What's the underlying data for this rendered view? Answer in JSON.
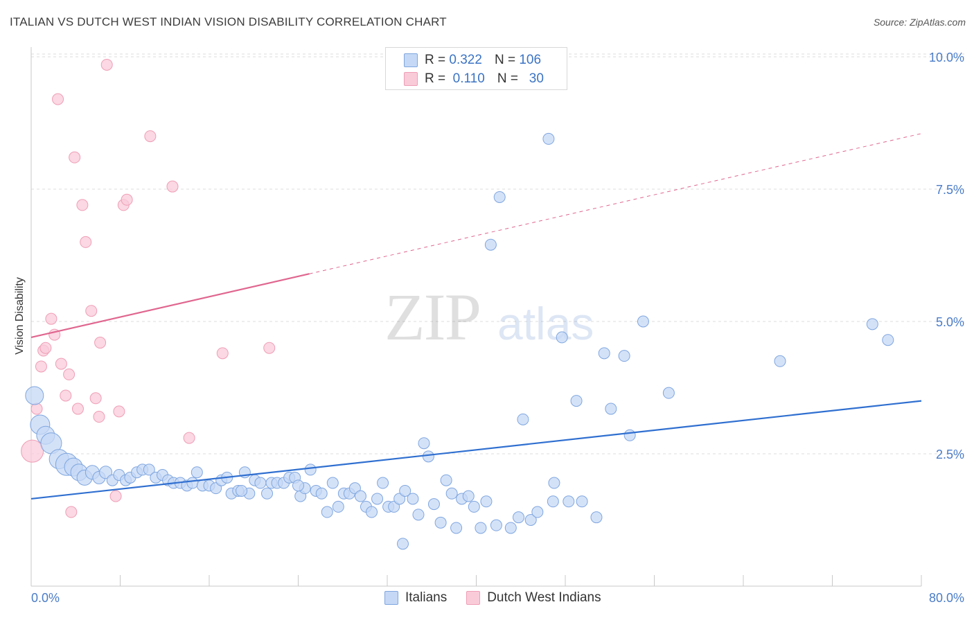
{
  "header": {
    "title": "ITALIAN VS DUTCH WEST INDIAN VISION DISABILITY CORRELATION CHART",
    "source": "Source: ZipAtlas.com"
  },
  "watermark": {
    "zip": "ZIP",
    "atlas": "atlas"
  },
  "legend": {
    "italians": {
      "r_label": "R =",
      "r_value": "0.322",
      "n_label": "N =",
      "n_value": "106"
    },
    "dutch": {
      "r_label": "R =",
      "r_value": "0.110",
      "n_label": "N =",
      "n_value": "30"
    }
  },
  "bottom_legend": {
    "italians": "Italians",
    "dutch": "Dutch West Indians"
  },
  "colors": {
    "italians_fill": "#c5d8f5",
    "italians_stroke": "#7fa6df",
    "italians_line": "#2f6fd0",
    "dutch_fill": "#f9cbd9",
    "dutch_stroke": "#ef9db6",
    "dutch_line": "#e0668f",
    "tick_text": "#4a7cc7",
    "grid": "#dddddd"
  },
  "chart_data": {
    "type": "scatter",
    "title": "ITALIAN VS DUTCH WEST INDIAN VISION DISABILITY CORRELATION CHART",
    "xlabel": "",
    "ylabel": "Vision Disability",
    "xlim": [
      0,
      80
    ],
    "ylim": [
      0,
      10.5
    ],
    "x_tick_labels": [
      "0.0%",
      "80.0%"
    ],
    "y_ticks": [
      2.5,
      5.0,
      7.5,
      10.0
    ],
    "y_tick_labels": [
      "2.5%",
      "5.0%",
      "7.5%",
      "10.0%"
    ],
    "grid": "horizontal dashed",
    "legend_position": "top-center",
    "series": [
      {
        "name": "Italians",
        "r": 0.322,
        "n": 106,
        "trend": {
          "x": [
            0,
            80
          ],
          "y": [
            1.65,
            3.5
          ]
        },
        "points": [
          [
            0.3,
            3.6,
            13
          ],
          [
            0.8,
            3.05,
            14
          ],
          [
            1.3,
            2.85,
            13
          ],
          [
            1.8,
            2.7,
            15
          ],
          [
            2.5,
            2.4,
            14
          ],
          [
            3.2,
            2.3,
            16
          ],
          [
            3.8,
            2.25,
            13
          ],
          [
            4.3,
            2.15,
            12
          ],
          [
            4.8,
            2.05,
            11
          ],
          [
            5.5,
            2.15,
            10
          ],
          [
            6.1,
            2.05,
            9
          ],
          [
            6.7,
            2.15,
            9
          ],
          [
            7.3,
            2.0,
            8
          ],
          [
            7.9,
            2.1,
            8
          ],
          [
            8.5,
            2.0,
            8
          ],
          [
            8.9,
            2.05,
            8
          ],
          [
            9.5,
            2.15,
            8
          ],
          [
            10.0,
            2.2,
            8
          ],
          [
            10.6,
            2.2,
            8
          ],
          [
            11.2,
            2.05,
            8
          ],
          [
            11.8,
            2.1,
            8
          ],
          [
            12.3,
            2.0,
            8
          ],
          [
            12.8,
            1.95,
            8
          ],
          [
            13.4,
            1.95,
            8
          ],
          [
            14.0,
            1.9,
            8
          ],
          [
            14.5,
            1.95,
            8
          ],
          [
            14.9,
            2.15,
            8
          ],
          [
            15.4,
            1.9,
            8
          ],
          [
            16.0,
            1.9,
            8
          ],
          [
            16.6,
            1.85,
            8
          ],
          [
            17.1,
            2.0,
            8
          ],
          [
            17.6,
            2.05,
            8
          ],
          [
            18.0,
            1.75,
            8
          ],
          [
            18.6,
            1.8,
            8
          ],
          [
            19.2,
            2.15,
            8
          ],
          [
            19.6,
            1.75,
            8
          ],
          [
            20.1,
            2.0,
            8
          ],
          [
            20.6,
            1.95,
            8
          ],
          [
            21.2,
            1.75,
            8
          ],
          [
            21.6,
            1.95,
            8
          ],
          [
            22.1,
            1.95,
            8
          ],
          [
            22.7,
            1.95,
            8
          ],
          [
            23.2,
            2.05,
            8
          ],
          [
            23.7,
            2.05,
            8
          ],
          [
            24.2,
            1.7,
            8
          ],
          [
            24.6,
            1.85,
            8
          ],
          [
            25.1,
            2.2,
            8
          ],
          [
            25.6,
            1.8,
            8
          ],
          [
            26.1,
            1.75,
            8
          ],
          [
            26.6,
            1.4,
            8
          ],
          [
            27.1,
            1.95,
            8
          ],
          [
            27.6,
            1.5,
            8
          ],
          [
            28.1,
            1.75,
            8
          ],
          [
            28.6,
            1.75,
            8
          ],
          [
            29.1,
            1.85,
            8
          ],
          [
            29.6,
            1.7,
            8
          ],
          [
            30.1,
            1.5,
            8
          ],
          [
            30.6,
            1.4,
            8
          ],
          [
            31.1,
            1.65,
            8
          ],
          [
            31.6,
            1.95,
            8
          ],
          [
            32.1,
            1.5,
            8
          ],
          [
            32.6,
            1.5,
            8
          ],
          [
            33.1,
            1.65,
            8
          ],
          [
            33.6,
            1.8,
            8
          ],
          [
            33.4,
            0.8,
            8
          ],
          [
            34.3,
            1.65,
            8
          ],
          [
            34.8,
            1.35,
            8
          ],
          [
            35.3,
            2.7,
            8
          ],
          [
            35.7,
            2.45,
            8
          ],
          [
            36.2,
            1.55,
            8
          ],
          [
            36.8,
            1.2,
            8
          ],
          [
            37.3,
            2.0,
            8
          ],
          [
            37.8,
            1.75,
            8
          ],
          [
            38.2,
            1.1,
            8
          ],
          [
            38.7,
            1.65,
            8
          ],
          [
            39.3,
            1.7,
            8
          ],
          [
            39.8,
            1.5,
            8
          ],
          [
            40.4,
            1.1,
            8
          ],
          [
            40.9,
            1.6,
            8
          ],
          [
            41.3,
            6.45,
            8
          ],
          [
            41.8,
            1.15,
            8
          ],
          [
            42.1,
            7.35,
            8
          ],
          [
            43.1,
            1.1,
            8
          ],
          [
            43.8,
            1.3,
            8
          ],
          [
            44.2,
            3.15,
            8
          ],
          [
            44.9,
            1.25,
            8
          ],
          [
            45.5,
            1.4,
            8
          ],
          [
            46.5,
            8.45,
            8
          ],
          [
            46.9,
            1.6,
            8
          ],
          [
            47.0,
            1.95,
            8
          ],
          [
            47.7,
            4.7,
            8
          ],
          [
            48.3,
            1.6,
            8
          ],
          [
            49.5,
            1.6,
            8
          ],
          [
            49.0,
            3.5,
            8
          ],
          [
            50.8,
            1.3,
            8
          ],
          [
            52.1,
            3.35,
            8
          ],
          [
            53.3,
            4.35,
            8
          ],
          [
            53.8,
            2.85,
            8
          ],
          [
            55.0,
            5.0,
            8
          ],
          [
            57.3,
            3.65,
            8
          ],
          [
            67.3,
            4.25,
            8
          ],
          [
            75.6,
            4.95,
            8
          ],
          [
            77.0,
            4.65,
            8
          ],
          [
            51.5,
            4.4,
            8
          ],
          [
            24.0,
            1.9,
            8
          ],
          [
            18.9,
            1.8,
            8
          ]
        ]
      },
      {
        "name": "Dutch West Indians",
        "r": 0.11,
        "n": 30,
        "trend": {
          "x": [
            0,
            25
          ],
          "y": [
            4.7,
            5.9
          ]
        },
        "trend_dashed": {
          "x": [
            25,
            80
          ],
          "y": [
            5.9,
            8.55
          ]
        },
        "points": [
          [
            0.1,
            2.55,
            16
          ],
          [
            0.5,
            3.35,
            8
          ],
          [
            0.9,
            4.15,
            8
          ],
          [
            1.1,
            4.45,
            8
          ],
          [
            1.3,
            4.5,
            8
          ],
          [
            1.8,
            5.05,
            8
          ],
          [
            2.1,
            4.75,
            8
          ],
          [
            2.4,
            9.2,
            8
          ],
          [
            2.7,
            4.2,
            8
          ],
          [
            3.1,
            3.6,
            8
          ],
          [
            3.4,
            4.0,
            8
          ],
          [
            3.6,
            1.4,
            8
          ],
          [
            3.9,
            8.1,
            8
          ],
          [
            4.2,
            3.35,
            8
          ],
          [
            4.6,
            7.2,
            8
          ],
          [
            4.9,
            6.5,
            8
          ],
          [
            5.4,
            5.2,
            8
          ],
          [
            5.8,
            3.55,
            8
          ],
          [
            6.1,
            3.2,
            8
          ],
          [
            6.2,
            4.6,
            8
          ],
          [
            6.8,
            9.85,
            8
          ],
          [
            7.6,
            1.7,
            8
          ],
          [
            7.9,
            3.3,
            8
          ],
          [
            8.3,
            7.2,
            8
          ],
          [
            8.6,
            7.3,
            8
          ],
          [
            10.7,
            8.5,
            8
          ],
          [
            12.7,
            7.55,
            8
          ],
          [
            14.2,
            2.8,
            8
          ],
          [
            17.2,
            4.4,
            8
          ],
          [
            21.4,
            4.5,
            8
          ]
        ]
      }
    ]
  }
}
